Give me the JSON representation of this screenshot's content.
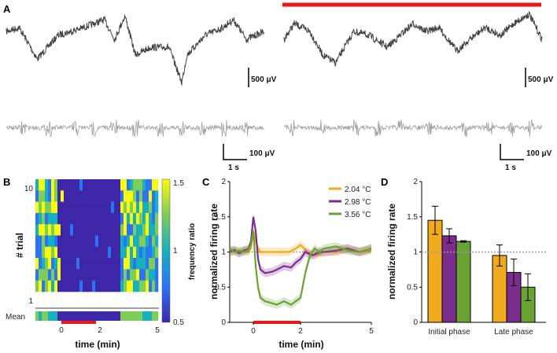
{
  "panels": {
    "a": "A",
    "b": "B",
    "c": "C",
    "d": "D"
  },
  "colors": {
    "lfp": "#444444",
    "mua": "#9e9e9e",
    "stim": "#e8191c",
    "s1": "#f0aa1e",
    "s2": "#7b2d8e",
    "s3": "#6aa334",
    "ref": "#9a9a9a"
  },
  "panel_a": {
    "lfp_scale": "500 μV",
    "mua_scale": "100 μV",
    "time_scale": "1 s"
  },
  "panel_b": {
    "ylabel": "# trial",
    "xlabel": "time (min)",
    "y_ticks": [
      "10",
      "1"
    ],
    "mean_label": "Mean",
    "x_ticks": [
      "0",
      "2",
      "5"
    ],
    "colorbar_label": "frequency ratio",
    "colorbar_ticks": [
      "1.5",
      "1",
      "0.5"
    ]
  },
  "chart_data": [
    {
      "id": "C",
      "type": "line",
      "xlabel": "time (min)",
      "ylabel": "normalized firing rate",
      "xlim": [
        -1,
        5
      ],
      "ylim": [
        0,
        2
      ],
      "x_ticks": [
        0,
        2,
        5
      ],
      "y_ticks": [
        0,
        0.5,
        1,
        1.5,
        2
      ],
      "stimulus": [
        0,
        2
      ],
      "reference_line": 1,
      "series": [
        {
          "name": "2.04 °C",
          "key": "s1",
          "x": [
            -1,
            -0.8,
            -0.6,
            -0.4,
            -0.2,
            -0.1,
            0,
            0.1,
            0.2,
            0.3,
            0.5,
            1,
            1.5,
            1.8,
            2,
            2.3,
            2.6,
            3,
            3.5,
            4,
            4.5,
            5
          ],
          "y": [
            1.0,
            1.02,
            0.99,
            1.03,
            1.0,
            1.05,
            1.3,
            1.15,
            1.05,
            1.0,
            1.0,
            1.0,
            1.0,
            1.05,
            1.1,
            1.0,
            0.95,
            1.0,
            1.0,
            1.05,
            1.0,
            1.02
          ]
        },
        {
          "name": "2.98 °C",
          "key": "s2",
          "x": [
            -1,
            -0.8,
            -0.6,
            -0.4,
            -0.2,
            -0.1,
            0,
            0.1,
            0.2,
            0.3,
            0.5,
            0.8,
            1,
            1.3,
            1.6,
            1.8,
            2,
            2.2,
            2.5,
            2.8,
            3,
            3.5,
            4,
            4.5,
            5
          ],
          "y": [
            1.0,
            1.03,
            0.98,
            1.02,
            1.05,
            1.15,
            1.5,
            1.3,
            0.9,
            0.75,
            0.7,
            0.72,
            0.75,
            0.8,
            0.78,
            0.85,
            0.9,
            1.0,
            0.95,
            1.0,
            1.0,
            1.02,
            1.05,
            1.0,
            1.05
          ]
        },
        {
          "name": "3.56 °C",
          "key": "s3",
          "x": [
            -1,
            -0.8,
            -0.6,
            -0.4,
            -0.2,
            -0.1,
            0,
            0.1,
            0.2,
            0.3,
            0.5,
            0.8,
            1,
            1.3,
            1.6,
            1.8,
            2,
            2.2,
            2.4,
            2.6,
            2.8,
            3,
            3.5,
            4,
            4.5,
            5
          ],
          "y": [
            1.05,
            1.0,
            1.02,
            1.0,
            1.03,
            1.1,
            1.3,
            0.8,
            0.5,
            0.35,
            0.3,
            0.27,
            0.25,
            0.3,
            0.25,
            0.3,
            0.35,
            0.7,
            0.95,
            1.05,
            1.0,
            1.05,
            1.08,
            1.02,
            1.0,
            1.05
          ]
        }
      ]
    },
    {
      "id": "D",
      "type": "bar",
      "ylabel": "normalized firing rate",
      "ylim": [
        0,
        2
      ],
      "y_ticks": [
        0,
        0.5,
        1,
        1.5,
        2
      ],
      "categories": [
        "Initial phase",
        "Late phase"
      ],
      "reference_line": 1,
      "series": [
        {
          "name": "2.04 °C",
          "key": "s1",
          "values": [
            1.45,
            0.95
          ],
          "errors": [
            0.2,
            0.15
          ]
        },
        {
          "name": "2.98 °C",
          "key": "s2",
          "values": [
            1.23,
            0.71
          ],
          "errors": [
            0.1,
            0.19
          ]
        },
        {
          "name": "3.56 °C",
          "key": "s3",
          "values": [
            1.15,
            0.5
          ],
          "errors": [
            0.01,
            0.19
          ]
        }
      ]
    }
  ]
}
